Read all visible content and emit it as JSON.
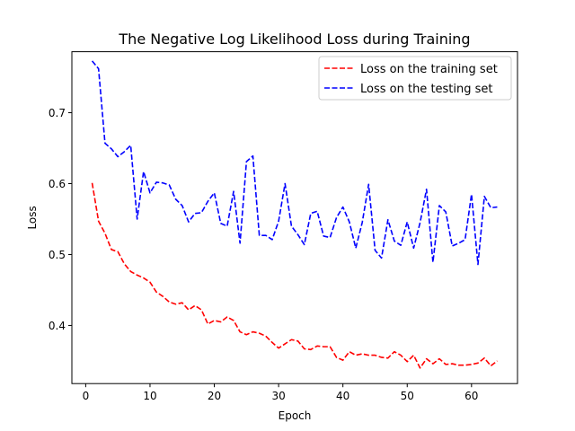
{
  "chart_data": {
    "type": "line",
    "title": "The Negative Log Likelihood Loss during Training",
    "xlabel": "Epoch",
    "ylabel": "Loss",
    "xlim": [
      -2.15,
      67.15
    ],
    "ylim": [
      0.318,
      0.786
    ],
    "xticks": [
      0,
      10,
      20,
      30,
      40,
      50,
      60
    ],
    "yticks": [
      0.4,
      0.5,
      0.6,
      0.7
    ],
    "ytick_labels": [
      "0.4",
      "0.5",
      "0.6",
      "0.7"
    ],
    "grid": false,
    "legend_position": "upper right",
    "x": [
      1,
      2,
      3,
      4,
      5,
      6,
      7,
      8,
      9,
      10,
      11,
      12,
      13,
      14,
      15,
      16,
      17,
      18,
      19,
      20,
      21,
      22,
      23,
      24,
      25,
      26,
      27,
      28,
      29,
      30,
      31,
      32,
      33,
      34,
      35,
      36,
      37,
      38,
      39,
      40,
      41,
      42,
      43,
      44,
      45,
      46,
      47,
      48,
      49,
      50,
      51,
      52,
      53,
      54,
      55,
      56,
      57,
      58,
      59,
      60,
      61,
      62,
      63,
      64
    ],
    "series": [
      {
        "name": "Loss on the training set",
        "color": "#ff0000",
        "line_style": "dashed",
        "values": [
          0.601,
          0.547,
          0.53,
          0.507,
          0.504,
          0.487,
          0.476,
          0.471,
          0.467,
          0.461,
          0.447,
          0.441,
          0.433,
          0.43,
          0.432,
          0.422,
          0.428,
          0.422,
          0.402,
          0.407,
          0.405,
          0.412,
          0.407,
          0.391,
          0.387,
          0.391,
          0.389,
          0.385,
          0.376,
          0.368,
          0.374,
          0.38,
          0.378,
          0.367,
          0.366,
          0.371,
          0.37,
          0.37,
          0.355,
          0.351,
          0.363,
          0.358,
          0.36,
          0.358,
          0.358,
          0.355,
          0.354,
          0.363,
          0.358,
          0.349,
          0.358,
          0.34,
          0.353,
          0.346,
          0.353,
          0.345,
          0.346,
          0.344,
          0.344,
          0.345,
          0.347,
          0.354,
          0.343,
          0.35
        ]
      },
      {
        "name": "Loss on the testing set",
        "color": "#0000ff",
        "line_style": "dashed",
        "values": [
          0.773,
          0.762,
          0.657,
          0.649,
          0.638,
          0.645,
          0.654,
          0.55,
          0.617,
          0.587,
          0.602,
          0.601,
          0.598,
          0.578,
          0.569,
          0.546,
          0.558,
          0.559,
          0.575,
          0.587,
          0.544,
          0.54,
          0.589,
          0.516,
          0.631,
          0.639,
          0.527,
          0.527,
          0.521,
          0.547,
          0.6,
          0.54,
          0.528,
          0.514,
          0.558,
          0.561,
          0.526,
          0.524,
          0.552,
          0.567,
          0.546,
          0.509,
          0.545,
          0.599,
          0.506,
          0.495,
          0.549,
          0.519,
          0.513,
          0.546,
          0.509,
          0.545,
          0.592,
          0.489,
          0.569,
          0.56,
          0.512,
          0.516,
          0.521,
          0.585,
          0.486,
          0.582,
          0.566,
          0.567
        ]
      }
    ]
  }
}
